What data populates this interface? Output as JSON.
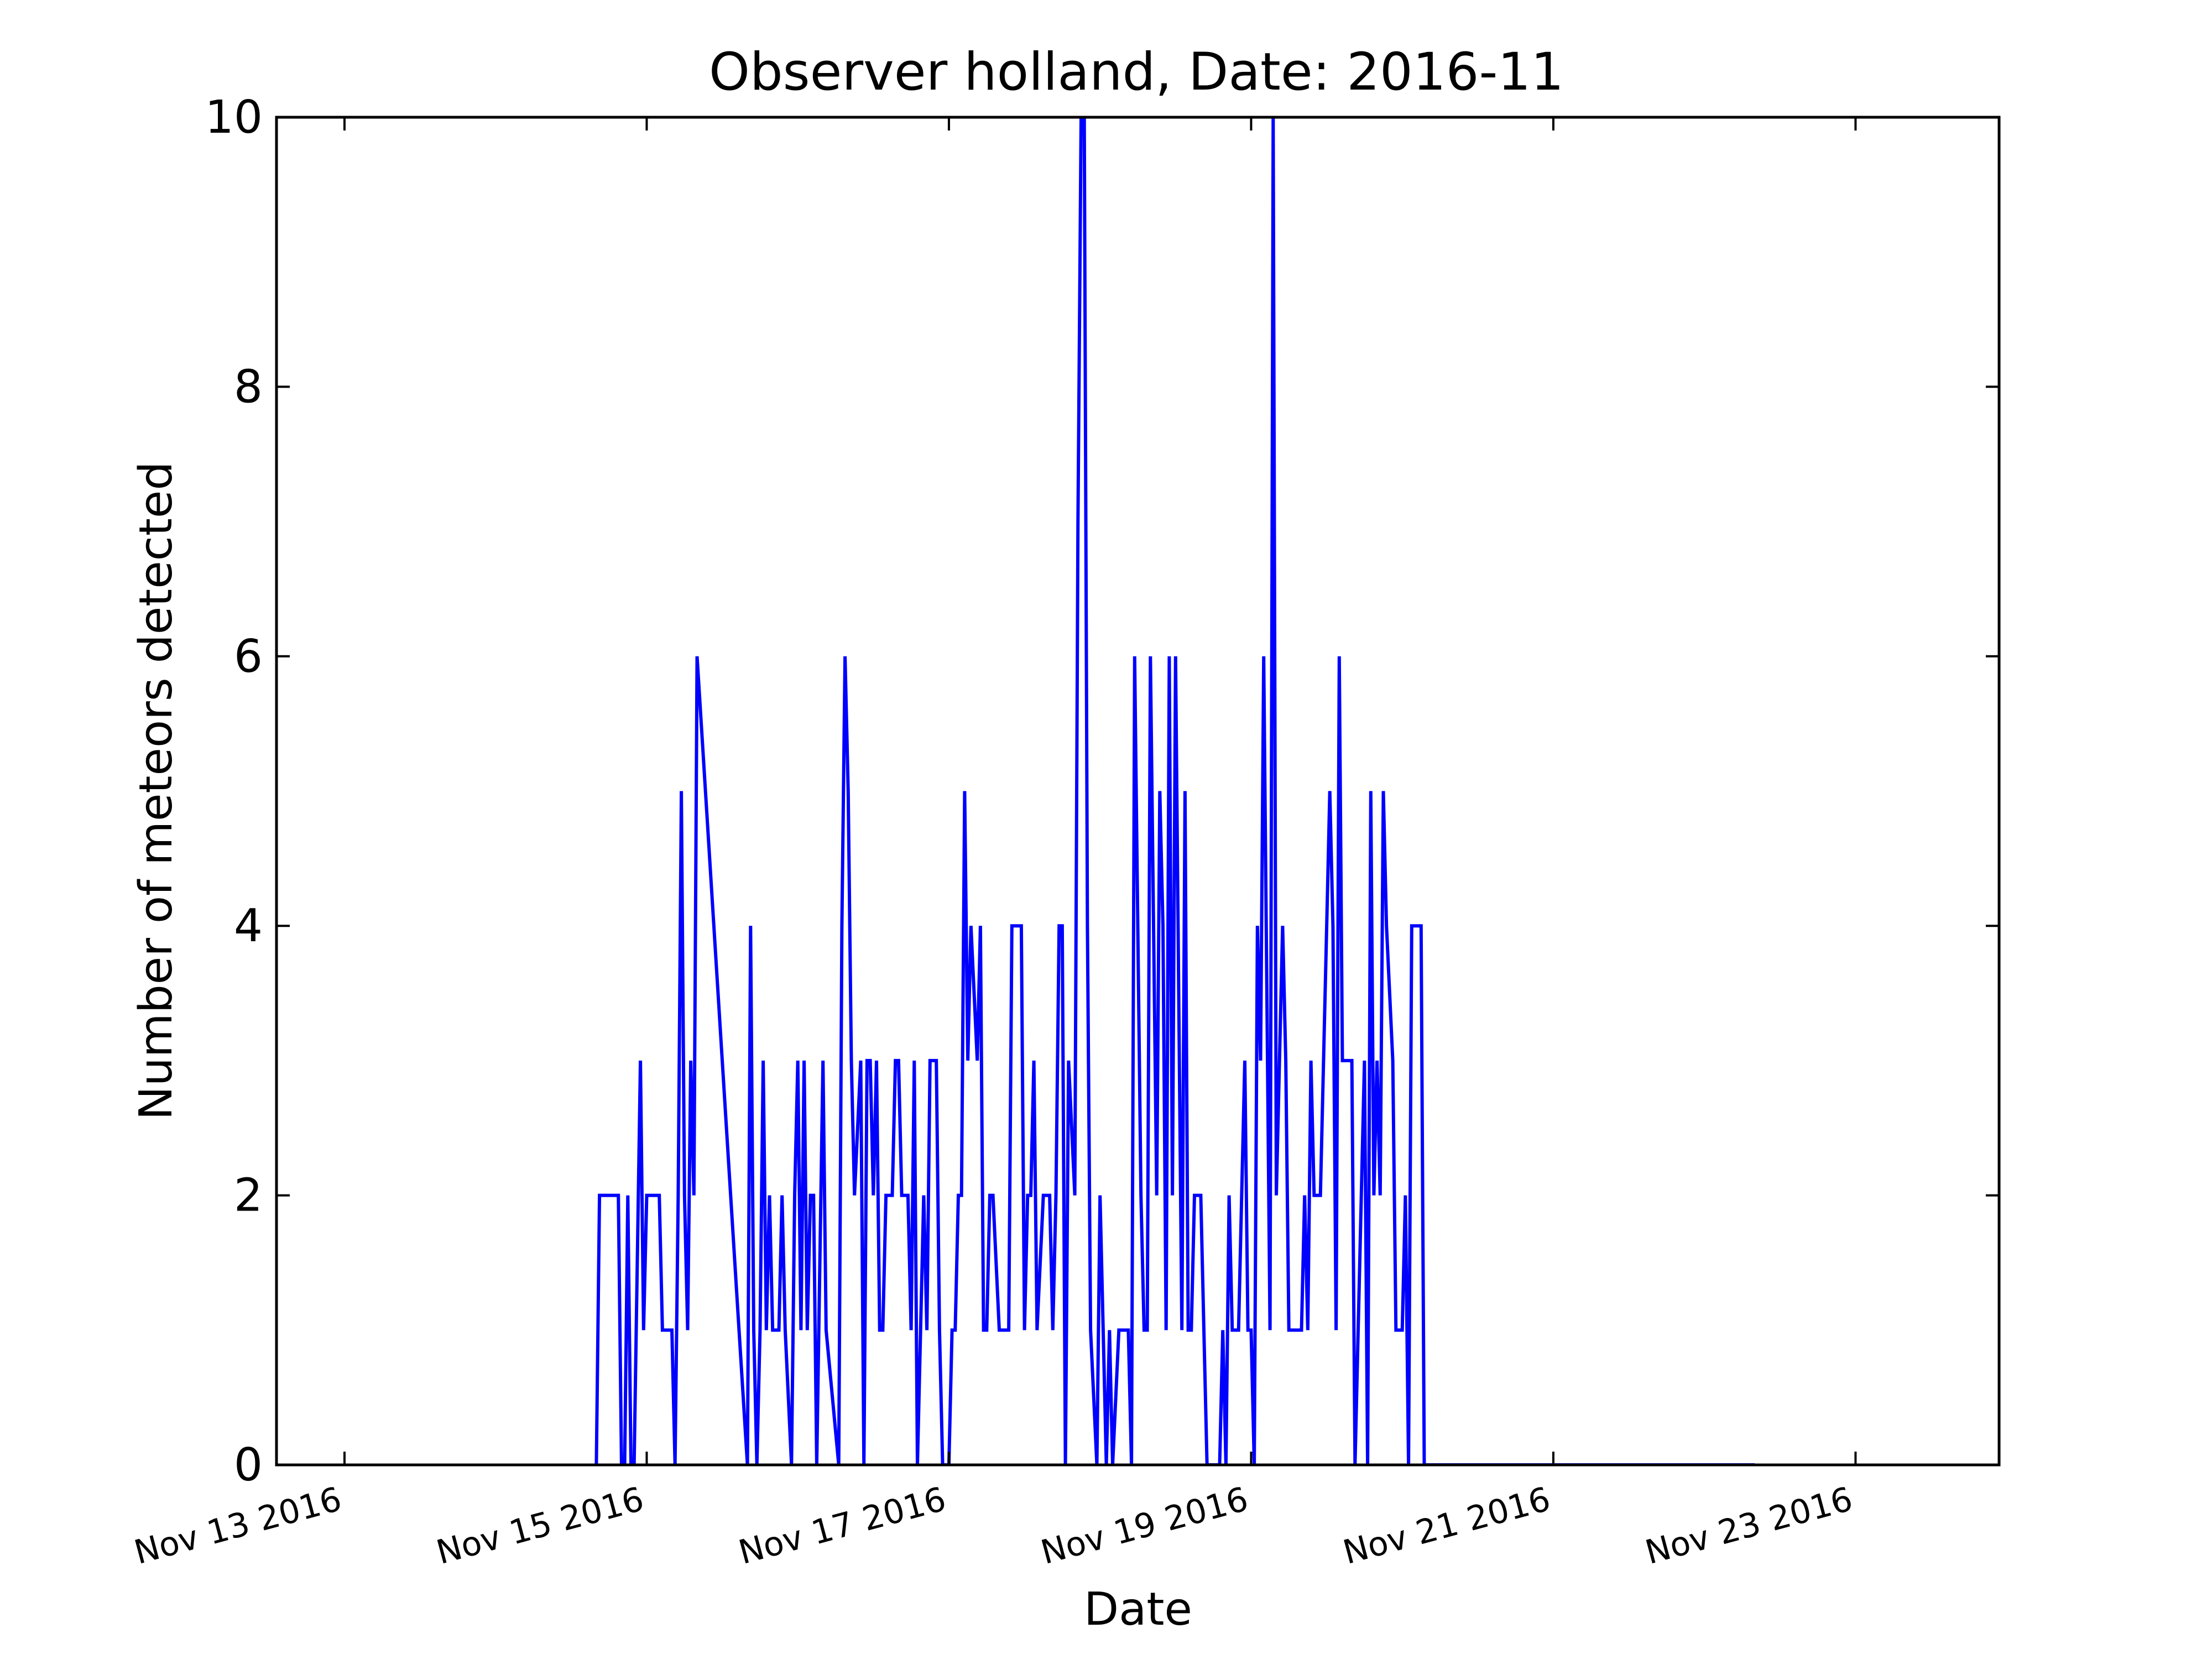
{
  "chart_data": {
    "type": "line",
    "title": "Observer holland, Date: 2016-11",
    "xlabel": "Date",
    "ylabel": "Number of meteors detected",
    "ylim": [
      0,
      10
    ],
    "xlim": [
      "2016-11-12 13:12",
      "2016-11-23 22:48"
    ],
    "yticks": [
      "0",
      "2",
      "4",
      "6",
      "8",
      "10"
    ],
    "xticks": [
      {
        "date": "2016-11-13",
        "label": "Nov 13 2016"
      },
      {
        "date": "2016-11-15",
        "label": "Nov 15 2016"
      },
      {
        "date": "2016-11-17",
        "label": "Nov 17 2016"
      },
      {
        "date": "2016-11-19",
        "label": "Nov 19 2016"
      },
      {
        "date": "2016-11-21",
        "label": "Nov 21 2016"
      },
      {
        "date": "2016-11-23",
        "label": "Nov 23 2016"
      }
    ],
    "grid": false,
    "line_color": "#0000ff",
    "series": [
      {
        "x": [
          "2016-11-14 16:00",
          "2016-11-14 16:30",
          "2016-11-14 17:00",
          "2016-11-14 18:00",
          "2016-11-14 19:00",
          "2016-11-14 19:30",
          "2016-11-14 20:00",
          "2016-11-14 20:30",
          "2016-11-14 21:00",
          "2016-11-14 21:30",
          "2016-11-14 22:00",
          "2016-11-14 23:00",
          "2016-11-14 23:30",
          "2016-11-15 00:00",
          "2016-11-15 00:30",
          "2016-11-15 01:00",
          "2016-11-15 02:00",
          "2016-11-15 02:30",
          "2016-11-15 03:00",
          "2016-11-15 04:00",
          "2016-11-15 04:30",
          "2016-11-15 05:00",
          "2016-11-15 05:30",
          "2016-11-15 06:00",
          "2016-11-15 06:30",
          "2016-11-15 07:00",
          "2016-11-15 07:30",
          "2016-11-15 08:00",
          "2016-11-15 16:00",
          "2016-11-15 16:30",
          "2016-11-15 17:00",
          "2016-11-15 17:30",
          "2016-11-15 18:00",
          "2016-11-15 18:30",
          "2016-11-15 19:00",
          "2016-11-15 19:30",
          "2016-11-15 20:00",
          "2016-11-15 21:00",
          "2016-11-15 21:30",
          "2016-11-15 22:00",
          "2016-11-15 23:00",
          "2016-11-15 23:30",
          "2016-11-16 00:00",
          "2016-11-16 00:30",
          "2016-11-16 01:00",
          "2016-11-16 01:30",
          "2016-11-16 02:00",
          "2016-11-16 02:30",
          "2016-11-16 03:00",
          "2016-11-16 04:00",
          "2016-11-16 04:30",
          "2016-11-16 06:30",
          "2016-11-16 07:00",
          "2016-11-16 07:30",
          "2016-11-16 08:00",
          "2016-11-16 08:30",
          "2016-11-16 09:00",
          "2016-11-16 10:00",
          "2016-11-16 10:30",
          "2016-11-16 11:00",
          "2016-11-16 11:30",
          "2016-11-16 12:00",
          "2016-11-16 12:30",
          "2016-11-16 13:00",
          "2016-11-16 13:30",
          "2016-11-16 14:00",
          "2016-11-16 15:00",
          "2016-11-16 15:30",
          "2016-11-16 16:00",
          "2016-11-16 16:30",
          "2016-11-16 17:00",
          "2016-11-16 17:30",
          "2016-11-16 18:00",
          "2016-11-16 18:30",
          "2016-11-16 19:00",
          "2016-11-16 20:00",
          "2016-11-16 20:30",
          "2016-11-16 21:00",
          "2016-11-16 22:00",
          "2016-11-16 22:30",
          "2016-11-16 23:00",
          "2016-11-17 00:00",
          "2016-11-17 00:30",
          "2016-11-17 01:00",
          "2016-11-17 01:30",
          "2016-11-17 02:00",
          "2016-11-17 02:30",
          "2016-11-17 03:00",
          "2016-11-17 03:30",
          "2016-11-17 04:30",
          "2016-11-17 05:00",
          "2016-11-17 05:30",
          "2016-11-17 06:00",
          "2016-11-17 06:30",
          "2016-11-17 07:00",
          "2016-11-17 08:00",
          "2016-11-17 08:30",
          "2016-11-17 09:00",
          "2016-11-17 09:30",
          "2016-11-17 10:00",
          "2016-11-17 10:30",
          "2016-11-17 11:30",
          "2016-11-17 12:00",
          "2016-11-17 12:30",
          "2016-11-17 13:00",
          "2016-11-17 13:30",
          "2016-11-17 14:00",
          "2016-11-17 15:00",
          "2016-11-17 15:30",
          "2016-11-17 16:00",
          "2016-11-17 16:30",
          "2016-11-17 17:00",
          "2016-11-17 17:30",
          "2016-11-17 18:00",
          "2016-11-17 18:30",
          "2016-11-17 19:00",
          "2016-11-17 20:00",
          "2016-11-17 20:30",
          "2016-11-17 21:00",
          "2016-11-17 21:30",
          "2016-11-17 22:00",
          "2016-11-17 22:30",
          "2016-11-17 23:30",
          "2016-11-18 00:00",
          "2016-11-18 00:30",
          "2016-11-18 01:00",
          "2016-11-18 01:30",
          "2016-11-18 02:00",
          "2016-11-18 03:00",
          "2016-11-18 03:30",
          "2016-11-18 04:00",
          "2016-11-18 04:30",
          "2016-11-18 05:00",
          "2016-11-18 05:30",
          "2016-11-18 06:30",
          "2016-11-18 07:00",
          "2016-11-18 07:30",
          "2016-11-18 08:00",
          "2016-11-18 09:00",
          "2016-11-18 09:30",
          "2016-11-18 10:00",
          "2016-11-18 10:30",
          "2016-11-18 11:00",
          "2016-11-18 11:30",
          "2016-11-18 12:00",
          "2016-11-18 13:00",
          "2016-11-18 13:30",
          "2016-11-18 14:00",
          "2016-11-18 14:30",
          "2016-11-18 15:00",
          "2016-11-18 15:30",
          "2016-11-18 16:00",
          "2016-11-18 16:30",
          "2016-11-18 17:00",
          "2016-11-18 18:00",
          "2016-11-18 19:00",
          "2016-11-18 19:30",
          "2016-11-18 20:00",
          "2016-11-18 20:30",
          "2016-11-18 21:00",
          "2016-11-18 21:30",
          "2016-11-18 22:00",
          "2016-11-18 23:00",
          "2016-11-18 23:30",
          "2016-11-19 00:00",
          "2016-11-19 00:30",
          "2016-11-19 01:00",
          "2016-11-19 01:30",
          "2016-11-19 02:00",
          "2016-11-19 03:00",
          "2016-11-19 03:30",
          "2016-11-19 04:00",
          "2016-11-19 04:30",
          "2016-11-19 05:00",
          "2016-11-19 05:30",
          "2016-11-19 06:00",
          "2016-11-19 06:30",
          "2016-11-19 07:00",
          "2016-11-19 08:00",
          "2016-11-19 08:30",
          "2016-11-19 09:00",
          "2016-11-19 09:30",
          "2016-11-19 10:00",
          "2016-11-19 10:30",
          "2016-11-19 11:00",
          "2016-11-19 12:00",
          "2016-11-19 12:30",
          "2016-11-19 13:00",
          "2016-11-19 13:30",
          "2016-11-19 14:00",
          "2016-11-19 14:30",
          "2016-11-19 15:00",
          "2016-11-19 16:00",
          "2016-11-19 16:30",
          "2016-11-19 17:00",
          "2016-11-19 18:00",
          "2016-11-19 18:30",
          "2016-11-19 19:00",
          "2016-11-19 19:30",
          "2016-11-19 20:00",
          "2016-11-19 20:30",
          "2016-11-19 21:00",
          "2016-11-19 21:30",
          "2016-11-19 22:30",
          "2016-11-19 23:00",
          "2016-11-19 23:30",
          "2016-11-20 00:00",
          "2016-11-20 00:30",
          "2016-11-20 01:00",
          "2016-11-20 01:30",
          "2016-11-20 02:00",
          "2016-11-20 03:00",
          "2016-11-20 03:30",
          "2016-11-20 04:00",
          "2016-11-20 04:30",
          "2016-11-20 05:00",
          "2016-11-20 06:30",
          "2016-11-20 07:00",
          "2016-11-20 07:30",
          "2016-11-20 08:30",
          "2016-11-20 09:00",
          "2016-11-20 09:30",
          "2016-11-20 10:00",
          "2016-11-20 10:30",
          "2016-11-20 11:00",
          "2016-11-20 11:30",
          "2016-11-20 12:00",
          "2016-11-20 12:30",
          "2016-11-20 13:00",
          "2016-11-20 13:30",
          "2016-11-20 14:00",
          "2016-11-20 15:00",
          "2016-11-20 15:30",
          "2016-11-20 16:00",
          "2016-11-20 17:00",
          "2016-11-20 18:00",
          "2016-11-20 18:30",
          "2016-11-20 19:00",
          "2016-11-20 19:30",
          "2016-11-20 20:00",
          "2016-11-20 20:30",
          "2016-11-20 21:00",
          "2016-11-20 22:00",
          "2016-11-20 22:30",
          "2016-11-20 23:00",
          "2016-11-21 00:00",
          "2016-11-21 00:30",
          "2016-11-21 01:00",
          "2016-11-21 01:30",
          "2016-11-21 02:00",
          "2016-11-21 03:00",
          "2016-11-21 03:30",
          "2016-11-21 04:00",
          "2016-11-21 04:30",
          "2016-11-21 05:00",
          "2016-11-21 06:00",
          "2016-11-21 07:00",
          "2016-11-21 07:30",
          "2016-11-21 08:00",
          "2016-11-21 09:00",
          "2016-11-21 09:30",
          "2016-11-21 10:00",
          "2016-11-21 10:30",
          "2016-11-21 11:30",
          "2016-11-21 12:00",
          "2016-11-21 12:30",
          "2016-11-21 13:30",
          "2016-11-21 14:00",
          "2016-11-21 14:30",
          "2016-11-21 16:00",
          "2016-11-21 17:00",
          "2016-11-21 17:30",
          "2016-11-21 18:00",
          "2016-11-21 19:00",
          "2016-11-21 20:00",
          "2016-11-21 20:30",
          "2016-11-21 21:00",
          "2016-11-21 21:30",
          "2016-11-21 22:00",
          "2016-11-21 22:30",
          "2016-11-21 23:00",
          "2016-11-21 23:30",
          "2016-11-22 00:00",
          "2016-11-22 00:30",
          "2016-11-22 01:30",
          "2016-11-22 02:00",
          "2016-11-22 03:00",
          "2016-11-22 03:30",
          "2016-11-22 04:00",
          "2016-11-22 04:30",
          "2016-11-22 05:00",
          "2016-11-22 06:00",
          "2016-11-22 07:00",
          "2016-11-22 08:00"
        ],
        "values": [
          0,
          2,
          2,
          2,
          2,
          2,
          0,
          0,
          2,
          0,
          0,
          3,
          1,
          2,
          2,
          2,
          2,
          1,
          1,
          1,
          0,
          2,
          5,
          2,
          1,
          3,
          2,
          6,
          0,
          4,
          1,
          0,
          1,
          3,
          1,
          2,
          1,
          1,
          2,
          1,
          0,
          2,
          3,
          1,
          3,
          1,
          2,
          2,
          0,
          3,
          1,
          0,
          4,
          6,
          5,
          3,
          2,
          3,
          0,
          3,
          3,
          2,
          3,
          1,
          1,
          2,
          2,
          3,
          3,
          2,
          2,
          2,
          1,
          3,
          0,
          2,
          1,
          3,
          3,
          1,
          0,
          0,
          1,
          1,
          2,
          2,
          5,
          3,
          4,
          3,
          4,
          1,
          1,
          2,
          2,
          1,
          1,
          1,
          1,
          4,
          4,
          4,
          1,
          2,
          2,
          3,
          1,
          2,
          2,
          2,
          1,
          2,
          4,
          4,
          0,
          3,
          2,
          7,
          10,
          10,
          4,
          1,
          0,
          2,
          1,
          0,
          1,
          0,
          1,
          1,
          1,
          1,
          0,
          6,
          2,
          1,
          1,
          6,
          2,
          5,
          4,
          1,
          6,
          2,
          6,
          1,
          5,
          1,
          1,
          2,
          2,
          2,
          1,
          0,
          0,
          0,
          1,
          0,
          2,
          1,
          1,
          1,
          3,
          1,
          1,
          0,
          4,
          3,
          6,
          1,
          10,
          2,
          3,
          4,
          3,
          1,
          1,
          1,
          1,
          2,
          1,
          3,
          2,
          2,
          2,
          4,
          5,
          4,
          1,
          6,
          3,
          3,
          3,
          0,
          1,
          3,
          0,
          5,
          2,
          3,
          2,
          5,
          4,
          3,
          1,
          1,
          1,
          2,
          0,
          4,
          4,
          4,
          0,
          0,
          0,
          0,
          0,
          0,
          0,
          0,
          0,
          0,
          0,
          0,
          0,
          0,
          0,
          0,
          0,
          0,
          0,
          0,
          0,
          0,
          0,
          0,
          0,
          0,
          0,
          0,
          0,
          0,
          0,
          0,
          0,
          0,
          0,
          0,
          0,
          0,
          0,
          0,
          0,
          0,
          0,
          0,
          0,
          0,
          0,
          0,
          0,
          0,
          0,
          0,
          0,
          0,
          0,
          0,
          0,
          0,
          0,
          0,
          0,
          0,
          0,
          0,
          0,
          0,
          0,
          0,
          0,
          0,
          0,
          0,
          0,
          0,
          0,
          0,
          0,
          0,
          0,
          0,
          0,
          0
        ]
      }
    ]
  }
}
